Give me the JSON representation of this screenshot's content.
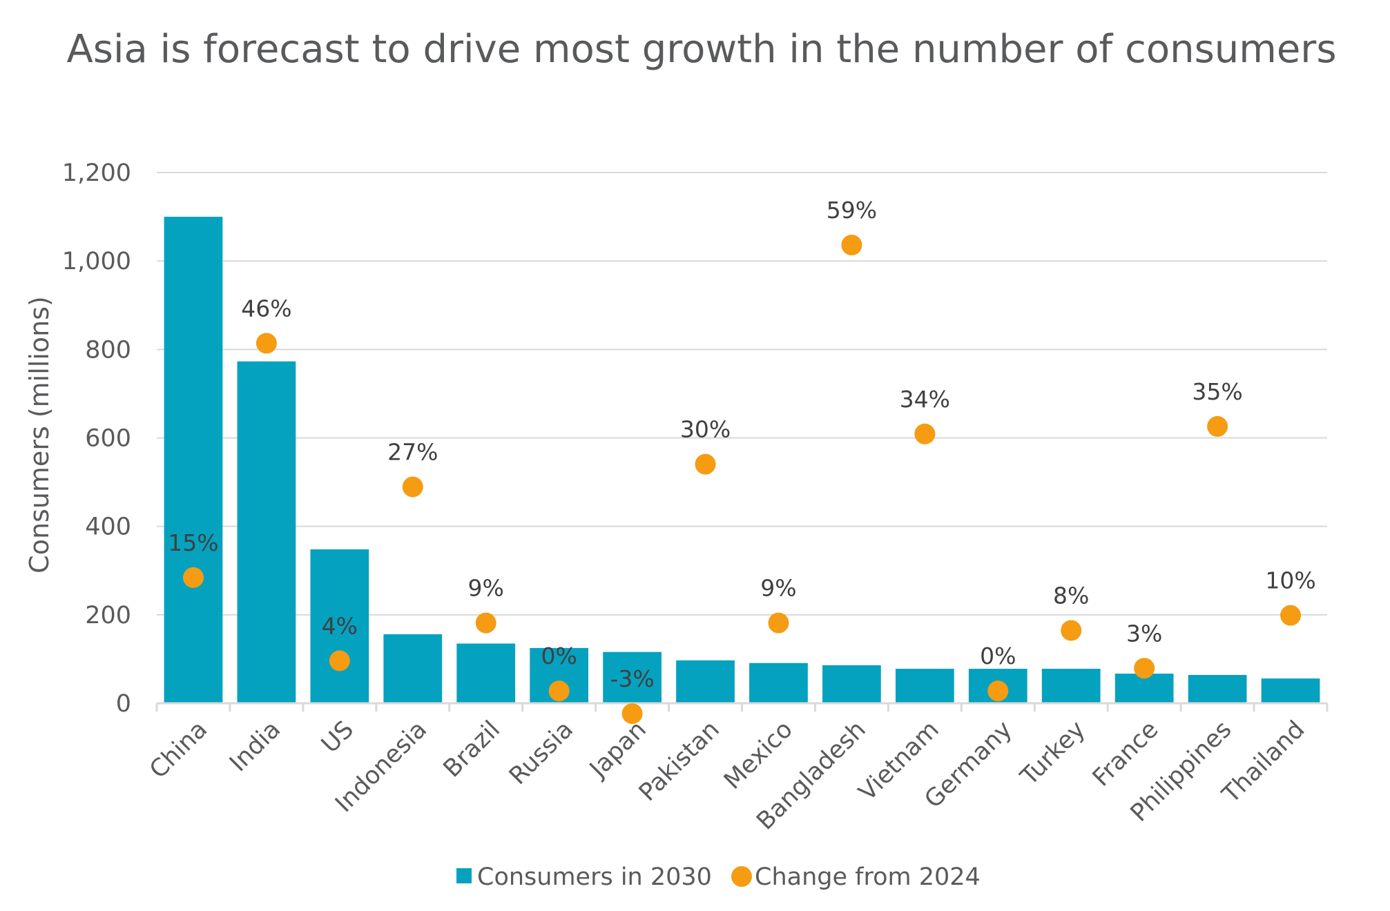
{
  "chart_data": {
    "type": "bar",
    "title": "Asia is forecast to drive most growth in the number of consumers",
    "ylabel": "Consumers (millions)",
    "xlabel": "",
    "ylim": [
      0,
      1200
    ],
    "yticks": [
      0,
      200,
      400,
      600,
      800,
      1000,
      1200
    ],
    "ytick_labels": [
      "0",
      "200",
      "400",
      "600",
      "800",
      "1,000",
      "1,200"
    ],
    "grid": true,
    "legend_position": "bottom",
    "categories": [
      "China",
      "India",
      "US",
      "Indonesia",
      "Brazil",
      "Russia",
      "Japan",
      "Pakistan",
      "Mexico",
      "Bangladesh",
      "Vietnam",
      "Germany",
      "Turkey",
      "France",
      "Philippines",
      "Thailand"
    ],
    "series": [
      {
        "name": "Consumers in 2030",
        "type": "bar",
        "color": "#05a2c0",
        "values": [
          1100,
          773,
          348,
          156,
          135,
          125,
          116,
          97,
          91,
          86,
          78,
          78,
          78,
          67,
          64,
          56
        ]
      },
      {
        "name": "Change from 2024",
        "type": "scatter",
        "color": "#f59c12",
        "values": [
          15,
          46,
          4,
          27,
          9,
          0,
          -3,
          30,
          9,
          59,
          34,
          0,
          8,
          3,
          35,
          10
        ],
        "labels": [
          "15%",
          "46%",
          "4%",
          "27%",
          "9%",
          "0%",
          "-3%",
          "30%",
          "9%",
          "59%",
          "34%",
          "0%",
          "8%",
          "3%",
          "35%",
          "10%"
        ]
      }
    ]
  }
}
